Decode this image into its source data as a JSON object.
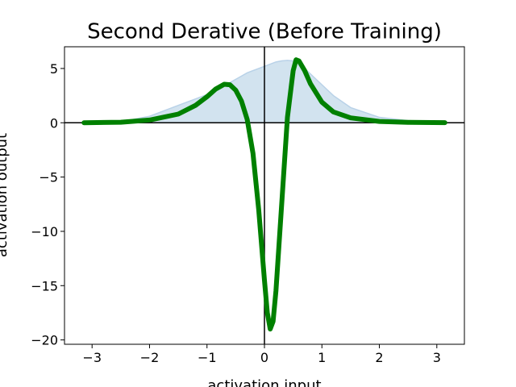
{
  "chart_data": {
    "type": "line",
    "title": "Second Derative (Before Training)",
    "x_label": "activation input",
    "y_label": "activation output",
    "x": [
      -3.14,
      -2.5,
      -2,
      -1.5,
      -1.2,
      -1,
      -0.85,
      -0.7,
      -0.6,
      -0.5,
      -0.4,
      -0.3,
      -0.2,
      -0.1,
      0,
      0.05,
      0.1,
      0.15,
      0.2,
      0.3,
      0.4,
      0.5,
      0.55,
      0.6,
      0.7,
      0.8,
      1,
      1.2,
      1.5,
      2,
      2.5,
      3.14
    ],
    "series": [
      {
        "style": "area",
        "color": "#d2e3ef",
        "edge_color": "#b9d2e8",
        "values": [
          0,
          0.1,
          0.6,
          1.6,
          2.2,
          2.6,
          3.0,
          3.4,
          3.7,
          4.0,
          4.3,
          4.6,
          4.8,
          5.0,
          5.2,
          5.3,
          5.4,
          5.5,
          5.6,
          5.7,
          5.75,
          5.7,
          5.6,
          5.4,
          5.0,
          4.5,
          3.5,
          2.5,
          1.4,
          0.5,
          0.2,
          0.02
        ]
      },
      {
        "style": "line",
        "color": "#008000",
        "values": [
          0,
          0.05,
          0.25,
          0.8,
          1.6,
          2.4,
          3.1,
          3.55,
          3.5,
          3.0,
          2.0,
          0.3,
          -2.8,
          -8,
          -14.5,
          -17.5,
          -19.0,
          -18.3,
          -15.5,
          -7.5,
          0.5,
          4.8,
          5.8,
          5.7,
          4.8,
          3.6,
          1.9,
          1.0,
          0.45,
          0.12,
          0.04,
          0.01
        ]
      }
    ],
    "xlim": [
      -3.48,
      3.48
    ],
    "ylim": [
      -20.4,
      7
    ],
    "xticks": [
      {
        "value": -3,
        "label": "−3"
      },
      {
        "value": -2,
        "label": "−2"
      },
      {
        "value": -1,
        "label": "−1"
      },
      0,
      1,
      2,
      3
    ],
    "yticks": [
      5,
      0,
      {
        "value": -5,
        "label": "−5"
      },
      {
        "value": -10,
        "label": "−10"
      },
      {
        "value": -15,
        "label": "−15"
      },
      {
        "value": -20,
        "label": "−20"
      }
    ],
    "zero_lines": true
  }
}
